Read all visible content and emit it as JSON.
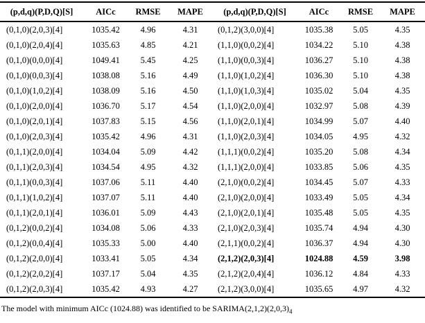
{
  "table": {
    "columns": [
      "(p,d,q)(P,D,Q)[S]",
      "AICc",
      "RMSE",
      "MAPE"
    ],
    "left_rows": [
      {
        "model": "(0,1,0)(2,0,3)[4]",
        "aicc": "1035.42",
        "rmse": "4.96",
        "mape": "4.31",
        "bold": false
      },
      {
        "model": "(0,1,0)(2,0,4)[4]",
        "aicc": "1035.63",
        "rmse": "4.85",
        "mape": "4.21",
        "bold": false
      },
      {
        "model": "(0,1,0)(0,0,0)[4]",
        "aicc": "1049.41",
        "rmse": "5.45",
        "mape": "4.25",
        "bold": false
      },
      {
        "model": "(0,1,0)(0,0,3)[4]",
        "aicc": "1038.08",
        "rmse": "5.16",
        "mape": "4.49",
        "bold": false
      },
      {
        "model": "(0,1,0)(1,0,2)[4]",
        "aicc": "1038.09",
        "rmse": "5.16",
        "mape": "4.50",
        "bold": false
      },
      {
        "model": "(0,1,0)(2,0,0)[4]",
        "aicc": "1036.70",
        "rmse": "5.17",
        "mape": "4.54",
        "bold": false
      },
      {
        "model": "(0,1,0)(2,0,1)[4]",
        "aicc": "1037.83",
        "rmse": "5.15",
        "mape": "4.56",
        "bold": false
      },
      {
        "model": "(0,1,0)(2,0,3)[4]",
        "aicc": "1035.42",
        "rmse": "4.96",
        "mape": "4.31",
        "bold": false
      },
      {
        "model": "(0,1,1)(2,0,0)[4]",
        "aicc": "1034.04",
        "rmse": "5.09",
        "mape": "4.42",
        "bold": false
      },
      {
        "model": "(0,1,1)(2,0,3)[4]",
        "aicc": "1034.54",
        "rmse": "4.95",
        "mape": "4.32",
        "bold": false
      },
      {
        "model": "(0,1,1)(0,0,3)[4]",
        "aicc": "1037.06",
        "rmse": "5.11",
        "mape": "4.40",
        "bold": false
      },
      {
        "model": "(0,1,1)(1,0,2)[4]",
        "aicc": "1037.07",
        "rmse": "5.11",
        "mape": "4.40",
        "bold": false
      },
      {
        "model": "(0,1,1)(2,0,1)[4]",
        "aicc": "1036.01",
        "rmse": "5.09",
        "mape": "4.43",
        "bold": false
      },
      {
        "model": "(0,1,2)(0,0,2)[4]",
        "aicc": "1034.08",
        "rmse": "5.06",
        "mape": "4.33",
        "bold": false
      },
      {
        "model": "(0,1,2)(0,0,4)[4]",
        "aicc": "1035.33",
        "rmse": "5.00",
        "mape": "4.40",
        "bold": false
      },
      {
        "model": "(0,1,2)(2,0,0)[4]",
        "aicc": "1033.41",
        "rmse": "5.05",
        "mape": "4.34",
        "bold": false
      },
      {
        "model": "(0,1,2)(2,0,2)[4]",
        "aicc": "1037.17",
        "rmse": "5.04",
        "mape": "4.35",
        "bold": false
      },
      {
        "model": "(0,1,2)(2,0,3)[4]",
        "aicc": "1035.42",
        "rmse": "4.93",
        "mape": "4.27",
        "bold": false
      }
    ],
    "right_rows": [
      {
        "model": "(0,1,2)(3,0,0)[4]",
        "aicc": "1035.38",
        "rmse": "5.05",
        "mape": "4.35",
        "bold": false
      },
      {
        "model": "(1,1,0)(0,0,2)[4]",
        "aicc": "1034.22",
        "rmse": "5.10",
        "mape": "4.38",
        "bold": false
      },
      {
        "model": "(1,1,0)(0,0,3)[4]",
        "aicc": "1036.27",
        "rmse": "5.10",
        "mape": "4.38",
        "bold": false
      },
      {
        "model": "(1,1,0)(1,0,2)[4]",
        "aicc": "1036.30",
        "rmse": "5.10",
        "mape": "4.38",
        "bold": false
      },
      {
        "model": "(1,1,0)(1,0,3)[4]",
        "aicc": "1035.02",
        "rmse": "5.04",
        "mape": "4.35",
        "bold": false
      },
      {
        "model": "(1,1,0)(2,0,0)[4]",
        "aicc": "1032.97",
        "rmse": "5.08",
        "mape": "4.39",
        "bold": false
      },
      {
        "model": "(1,1,0)(2,0,1)[4]",
        "aicc": "1034.99",
        "rmse": "5.07",
        "mape": "4.40",
        "bold": false
      },
      {
        "model": "(1,1,0)(2,0,3)[4]",
        "aicc": "1034.05",
        "rmse": "4.95",
        "mape": "4.32",
        "bold": false
      },
      {
        "model": "(1,1,1)(0,0,2)[4]",
        "aicc": "1035.20",
        "rmse": "5.08",
        "mape": "4.34",
        "bold": false
      },
      {
        "model": "(1,1,1)(2,0,0)[4]",
        "aicc": "1033.85",
        "rmse": "5.06",
        "mape": "4.35",
        "bold": false
      },
      {
        "model": "(2,1,0)(0,0,2)[4]",
        "aicc": "1034.45",
        "rmse": "5.07",
        "mape": "4.33",
        "bold": false
      },
      {
        "model": "(2,1,0)(2,0,0)[4]",
        "aicc": "1033.49",
        "rmse": "5.05",
        "mape": "4.34",
        "bold": false
      },
      {
        "model": "(2,1,0)(2,0,1)[4]",
        "aicc": "1035.48",
        "rmse": "5.05",
        "mape": "4.35",
        "bold": false
      },
      {
        "model": "(2,1,0)(2,0,3)[4]",
        "aicc": "1035.74",
        "rmse": "4.94",
        "mape": "4.30",
        "bold": false
      },
      {
        "model": "(2,1,1)(0,0,2)[4]",
        "aicc": "1036.37",
        "rmse": "4.94",
        "mape": "4.30",
        "bold": false
      },
      {
        "model": "(2,1,2)(2,0,3)[4]",
        "aicc": "1024.88",
        "rmse": "4.59",
        "mape": "3.98",
        "bold": true
      },
      {
        "model": "(2,1,2)(2,0,4)[4]",
        "aicc": "1036.12",
        "rmse": "4.84",
        "mape": "4.33",
        "bold": false
      },
      {
        "model": "(2,1,2)(3,0,0)[4]",
        "aicc": "1035.65",
        "rmse": "4.97",
        "mape": "4.32",
        "bold": false
      }
    ]
  },
  "footnote": {
    "text": "The model with minimum AICc (1024.88) was identified to be SARIMA(2,1,2)(2,0,3)",
    "subscript": "4"
  }
}
